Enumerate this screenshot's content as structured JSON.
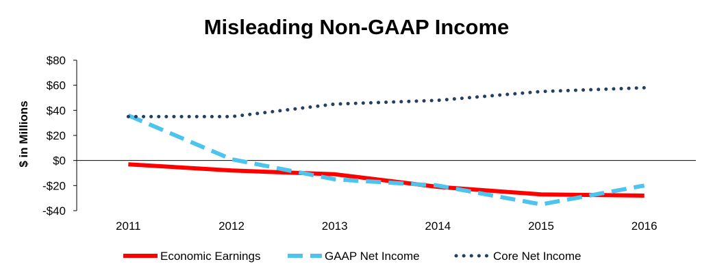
{
  "chart_data": {
    "type": "line",
    "title": "Misleading Non-GAAP Income",
    "ylabel": "$ in Millions",
    "xlabel": "",
    "categories": [
      "2011",
      "2012",
      "2013",
      "2014",
      "2015",
      "2016"
    ],
    "ylim": [
      -40,
      80
    ],
    "yticks": [
      -40,
      -20,
      0,
      20,
      40,
      60,
      80
    ],
    "ytick_labels": [
      "-$40",
      "-$20",
      "$0",
      "$20",
      "$40",
      "$60",
      "$80"
    ],
    "legend_position": "bottom",
    "series": [
      {
        "name": "Economic Earnings",
        "values": [
          -3,
          -8,
          -11,
          -21,
          -27,
          -28
        ],
        "color": "#ff0000",
        "style": "solid"
      },
      {
        "name": "GAAP Net Income",
        "values": [
          36,
          1,
          -15,
          -20,
          -35,
          -20
        ],
        "color": "#4cc4ee",
        "style": "dashed"
      },
      {
        "name": "Core Net Income",
        "values": [
          35,
          35,
          45,
          48,
          55,
          58
        ],
        "color": "#243f5f",
        "style": "dotted"
      }
    ]
  }
}
